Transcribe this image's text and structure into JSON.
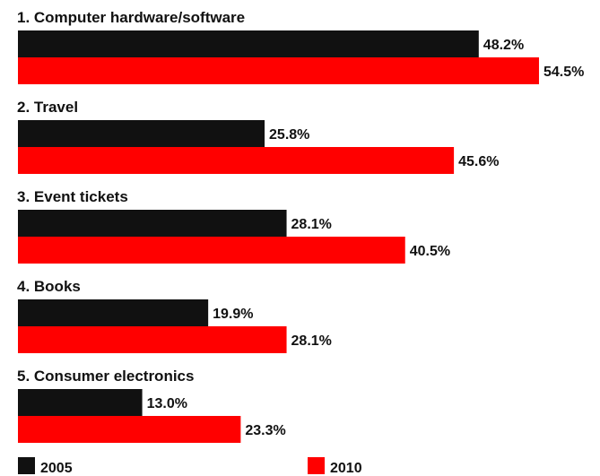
{
  "chart_data": {
    "type": "bar",
    "orientation": "horizontal",
    "categories": [
      "1. Computer hardware/software",
      "2. Travel",
      "3. Event tickets",
      "4. Books",
      "5. Consumer electronics"
    ],
    "series": [
      {
        "name": "2005",
        "color": "#111111",
        "values": [
          48.2,
          25.8,
          28.1,
          19.9,
          13.0
        ],
        "labels": [
          "48.2%",
          "25.8%",
          "28.1%",
          "19.9%",
          "13.0%"
        ]
      },
      {
        "name": "2010",
        "color": "#ff0000",
        "values": [
          54.5,
          45.6,
          40.5,
          28.1,
          23.3
        ],
        "labels": [
          "54.5%",
          "45.6%",
          "40.5%",
          "28.1%",
          "23.3%"
        ]
      }
    ],
    "unit": "%",
    "grid": false,
    "axes_visible": false,
    "legend_position": "bottom"
  }
}
